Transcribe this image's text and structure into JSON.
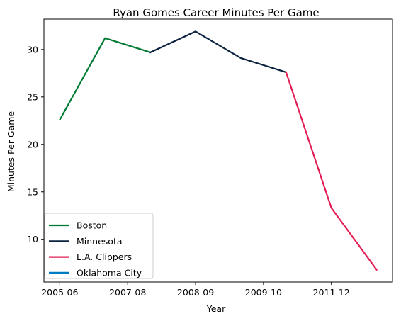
{
  "chart_data": {
    "type": "line",
    "title": "Ryan Gomes Career Minutes Per Game",
    "xlabel": "Year",
    "ylabel": "Minutes Per Game",
    "x_index_range": [
      -0.35,
      7.35
    ],
    "ylim": [
      5.5,
      33.2
    ],
    "xticks": [
      {
        "index": 0,
        "label": "2005-06"
      },
      {
        "index": 1.5,
        "label": "2007-08"
      },
      {
        "index": 3,
        "label": "2008-09"
      },
      {
        "index": 4.5,
        "label": "2009-10"
      },
      {
        "index": 6,
        "label": "2011-12"
      }
    ],
    "yticks": [
      10,
      15,
      20,
      25,
      30
    ],
    "grid": false,
    "legend_position": "lower-left",
    "series": [
      {
        "name": "Boston",
        "color": "#007a33",
        "points": [
          [
            0,
            22.6
          ],
          [
            1,
            31.2
          ],
          [
            2,
            29.7
          ]
        ]
      },
      {
        "name": "Minnesota",
        "color": "#0c2340",
        "points": [
          [
            2,
            29.7
          ],
          [
            3,
            31.9
          ],
          [
            4,
            29.1
          ],
          [
            5,
            27.6
          ]
        ]
      },
      {
        "name": "L.A. Clippers",
        "color": "#e31d53",
        "points": [
          [
            5,
            27.6
          ],
          [
            6,
            13.3
          ],
          [
            7,
            6.8
          ]
        ]
      },
      {
        "name": "Oklahoma City",
        "color": "#007ac1",
        "points": []
      }
    ]
  }
}
